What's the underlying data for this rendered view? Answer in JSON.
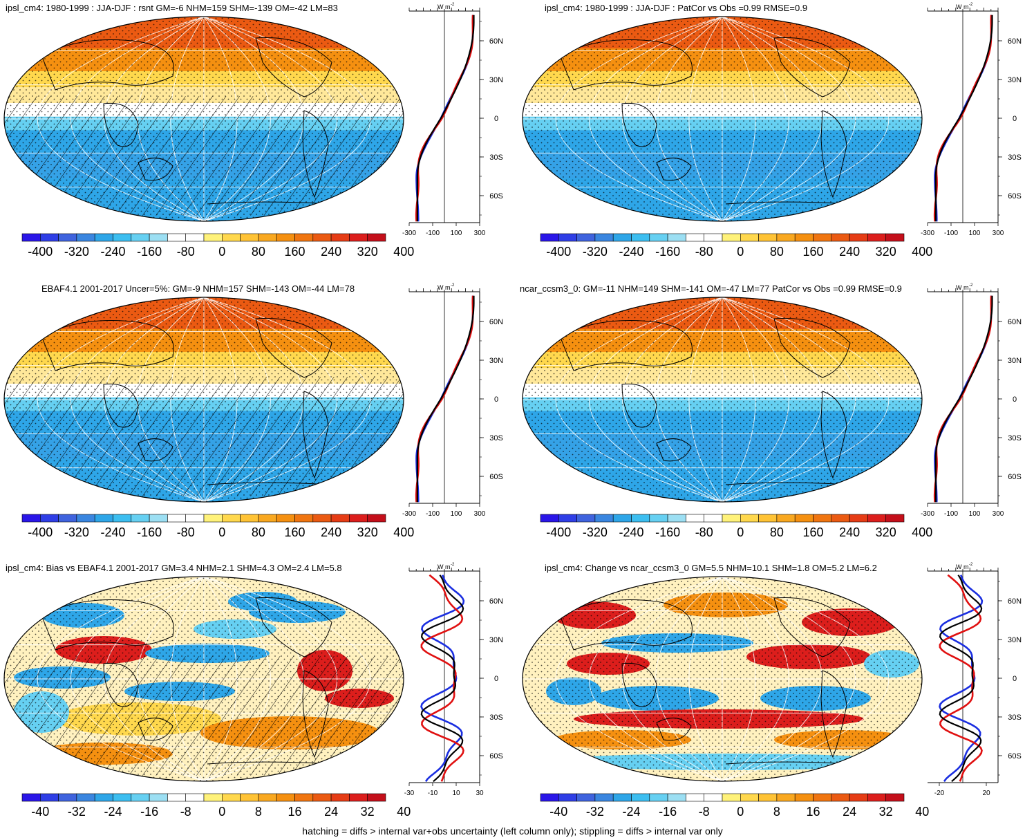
{
  "colorbar_colors": [
    "#2a16e8",
    "#2f3ee6",
    "#3f63de",
    "#3a86e0",
    "#2ea6e8",
    "#3cbef0",
    "#66d0f2",
    "#9cdff3",
    "#ffffff",
    "#ffffff",
    "#fff27a",
    "#ffd84d",
    "#ffc335",
    "#f9a820",
    "#f59010",
    "#f07510",
    "#eb5a12",
    "#e63c15",
    "#dc1e1c",
    "#c40f1a"
  ],
  "colorbar_swatch": {
    "blue": "#2ea6e8",
    "light_blue": "#66d0f2",
    "white": "#ffffff",
    "yellow": "#ffd84d",
    "orange": "#f59010",
    "deep_orange": "#eb5a12",
    "red": "#dc1e1c"
  },
  "line_colors": {
    "model": "#e01010",
    "obs": "#1a2ee0",
    "mean": "#000000"
  },
  "profile_y_ticks": [
    "60N",
    "30N",
    "0",
    "30S",
    "60S"
  ],
  "panels": [
    {
      "id": "a",
      "title": "ipsl_cm4: 1980-1999 : JJA-DJF : rsnt GM=-6 NHM=159 SHM=-139 OM=-42 LM=83",
      "type": "clim",
      "hatching": true,
      "profile_unit": "W m",
      "profile_unit_exp": "-2",
      "profile_x_ticks": [
        "-300",
        "-100",
        "100",
        "300"
      ],
      "profile_x_values": [
        -300,
        -100,
        100,
        300
      ],
      "profile_x_range": [
        -300,
        300
      ],
      "colorbar_labels": [
        "-400",
        "-320",
        "-240",
        "-160",
        "-80",
        "0",
        "80",
        "160",
        "240",
        "320",
        "400"
      ]
    },
    {
      "id": "b",
      "title": "ipsl_cm4: 1980-1999 : JJA-DJF : PatCor vs Obs =0.99 RMSE=0.9",
      "type": "clim",
      "hatching": false,
      "profile_unit": "W m",
      "profile_unit_exp": "-2",
      "profile_x_ticks": [
        "-300",
        "-100",
        "100",
        "300"
      ],
      "profile_x_values": [
        -300,
        -100,
        100,
        300
      ],
      "profile_x_range": [
        -300,
        300
      ],
      "colorbar_labels": [
        "-400",
        "-320",
        "-240",
        "-160",
        "-80",
        "0",
        "80",
        "160",
        "240",
        "320",
        "400"
      ]
    },
    {
      "id": "c",
      "title": "EBAF4.1 2001-2017 Uncer=5%: GM=-9 NHM=157 SHM=-143 OM=-44 LM=78",
      "type": "clim",
      "hatching": true,
      "profile_unit": "W m",
      "profile_unit_exp": "-2",
      "profile_x_ticks": [
        "-300",
        "-100",
        "100",
        "300"
      ],
      "profile_x_values": [
        -300,
        -100,
        100,
        300
      ],
      "profile_x_range": [
        -300,
        300
      ],
      "colorbar_labels": [
        "-400",
        "-320",
        "-240",
        "-160",
        "-80",
        "0",
        "80",
        "160",
        "240",
        "320",
        "400"
      ]
    },
    {
      "id": "d",
      "title": "ncar_ccsm3_0: GM=-11 NHM=149 SHM=-141 OM=-47 LM=77 PatCor vs Obs =0.99 RMSE=0.9",
      "type": "clim",
      "hatching": false,
      "profile_unit": "W m",
      "profile_unit_exp": "-2",
      "profile_x_ticks": [
        "-300",
        "-100",
        "100",
        "300"
      ],
      "profile_x_values": [
        -300,
        -100,
        100,
        300
      ],
      "profile_x_range": [
        -300,
        300
      ],
      "colorbar_labels": [
        "-400",
        "-320",
        "-240",
        "-160",
        "-80",
        "0",
        "80",
        "160",
        "240",
        "320",
        "400"
      ]
    },
    {
      "id": "e",
      "title": "ipsl_cm4: Bias vs EBAF4.1 2001-2017 GM=3.4 NHM=2.1 SHM=4.3 OM=2.4 LM=5.8",
      "type": "diff",
      "hatching": true,
      "profile_unit": "W m",
      "profile_unit_exp": "-2",
      "profile_x_ticks": [
        "-30",
        "-10",
        "10",
        "30"
      ],
      "profile_x_values": [
        -30,
        -10,
        10,
        30
      ],
      "profile_x_range": [
        -30,
        30
      ],
      "colorbar_labels": [
        "-40",
        "-32",
        "-24",
        "-16",
        "-8",
        "0",
        "8",
        "16",
        "24",
        "32",
        "40"
      ]
    },
    {
      "id": "f",
      "title": "ipsl_cm4: Change vs ncar_ccsm3_0 GM=5.5 NHM=10.1 SHM=1.8 OM=5.2 LM=6.2",
      "type": "diff",
      "hatching": false,
      "profile_unit": "W m",
      "profile_unit_exp": "-2",
      "profile_x_ticks": [
        "-20",
        "20"
      ],
      "profile_x_values": [
        -20,
        20
      ],
      "profile_x_range": [
        -30,
        30
      ],
      "colorbar_labels": [
        "-40",
        "-32",
        "-24",
        "-16",
        "-8",
        "0",
        "8",
        "16",
        "24",
        "32",
        "40"
      ]
    }
  ],
  "footer": "hatching = diffs > internal var+obs uncertainty (left column only); stippling = diffs > internal var only"
}
